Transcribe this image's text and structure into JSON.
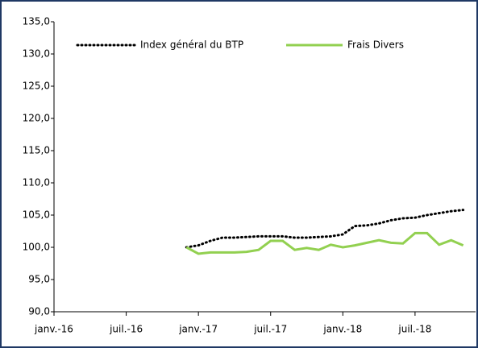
{
  "chart_data": {
    "type": "line",
    "categories": [
      "janv.-16",
      null,
      null,
      null,
      null,
      null,
      "juil.-16",
      null,
      null,
      null,
      null,
      null,
      "janv.-17",
      null,
      null,
      null,
      null,
      null,
      "juil.-17",
      null,
      null,
      null,
      null,
      null,
      "janv.-18",
      null,
      null,
      null,
      null,
      null,
      "juil.-18",
      null,
      null,
      null,
      null
    ],
    "series": [
      {
        "name": "Index général du BTP",
        "color": "#000000",
        "dash": "dotted",
        "values": [
          null,
          null,
          null,
          null,
          null,
          null,
          null,
          null,
          null,
          null,
          null,
          100,
          100.3,
          101,
          101.5,
          101.5,
          101.6,
          101.7,
          101.7,
          101.7,
          101.5,
          101.5,
          101.6,
          101.7,
          102,
          103.3,
          103.4,
          103.7,
          104.2,
          104.5,
          104.6,
          105,
          105.3,
          105.6,
          105.8
        ]
      },
      {
        "name": "Frais Divers",
        "color": "#92d050",
        "dash": "solid",
        "values": [
          null,
          null,
          null,
          null,
          null,
          null,
          null,
          null,
          null,
          null,
          null,
          100,
          99,
          99.2,
          99.2,
          99.2,
          99.3,
          99.6,
          101,
          101,
          99.6,
          99.9,
          99.6,
          100.4,
          100,
          100.3,
          100.7,
          101.1,
          100.7,
          100.6,
          102.2,
          102.2,
          100.4,
          101.1,
          100.3
        ]
      }
    ],
    "ylim": [
      90,
      135
    ],
    "yticks": [
      {
        "value": 90,
        "label": "90,0"
      },
      {
        "value": 95,
        "label": "95,0"
      },
      {
        "value": 100,
        "label": "100,0"
      },
      {
        "value": 105,
        "label": "105,0"
      },
      {
        "value": 110,
        "label": "110,0"
      },
      {
        "value": 115,
        "label": "115,0"
      },
      {
        "value": 120,
        "label": "120,0"
      },
      {
        "value": 125,
        "label": "125,0"
      },
      {
        "value": 130,
        "label": "130,0"
      },
      {
        "value": 135,
        "label": "135,0"
      }
    ],
    "legend": "top"
  }
}
